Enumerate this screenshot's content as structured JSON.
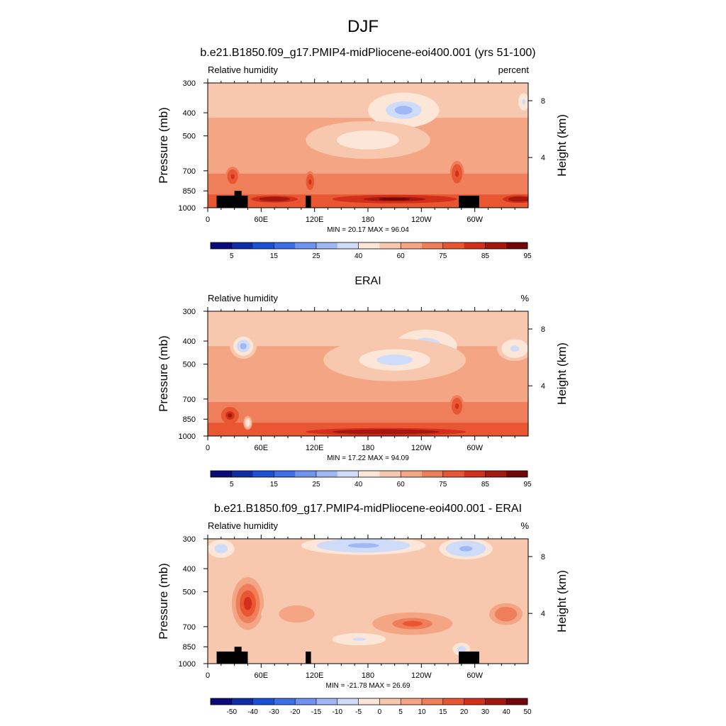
{
  "figure": {
    "title": "DJF"
  },
  "colorbar_palette": [
    "#0a0a78",
    "#0d2ca6",
    "#1a4fd6",
    "#3d6ee8",
    "#6f93ef",
    "#9fb8f4",
    "#cfdcf9",
    "#fbe6d8",
    "#f8c8ae",
    "#f4a584",
    "#ef7e5b",
    "#e85632",
    "#d2301a",
    "#a5180e",
    "#730608"
  ],
  "chart_data": [
    {
      "type": "heatmap",
      "title": "b.e21.B1850.f09_g17.PMIP4-midPliocene-eoi400.001 (yrs 51-100)",
      "variable_label": "Relative humidity",
      "units_label": "percent",
      "ylabel": "Pressure (mb)",
      "ylabel_right": "Height (km)",
      "x_ticks": [
        "0",
        "60E",
        "120E",
        "180",
        "120W",
        "60W"
      ],
      "x_tick_values": [
        0,
        60,
        120,
        180,
        240,
        300
      ],
      "xlim": [
        0,
        360
      ],
      "y_ticks": [
        "300",
        "400",
        "500",
        "700",
        "850",
        "1000"
      ],
      "y_tick_values": [
        300,
        400,
        500,
        700,
        850,
        1000
      ],
      "ylim": [
        1000,
        300
      ],
      "height_ticks": [
        "8",
        "4"
      ],
      "height_tick_pressures": [
        356,
        616
      ],
      "stats_text": "MIN =  20.17  MAX =  96.04",
      "min": 20.17,
      "max": 96.04,
      "colorbar_labels": [
        "5",
        "15",
        "25",
        "40",
        "60",
        "75",
        "85",
        "95"
      ],
      "colorbar_label_levels": [
        1,
        3,
        5,
        7,
        9,
        11,
        13,
        15
      ],
      "shading_levels": [
        0,
        5,
        10,
        15,
        20,
        25,
        30,
        40,
        50,
        60,
        70,
        75,
        80,
        85,
        90,
        95,
        100
      ],
      "has_topography": true,
      "features": [
        {
          "lon": 220,
          "p": 390,
          "value": 25,
          "rx": 40,
          "ry": 110
        },
        {
          "lon": 180,
          "p": 520,
          "value": 44,
          "rx": 70,
          "ry": 160
        },
        {
          "lon": 210,
          "p": 920,
          "value": 92,
          "rx": 70,
          "ry": 25
        },
        {
          "lon": 280,
          "p": 720,
          "value": 82,
          "rx": 8,
          "ry": 140
        },
        {
          "lon": 115,
          "p": 780,
          "value": 82,
          "rx": 6,
          "ry": 120
        },
        {
          "lon": 28,
          "p": 740,
          "value": 82,
          "rx": 8,
          "ry": 100
        },
        {
          "lon": 350,
          "p": 920,
          "value": 88,
          "rx": 25,
          "ry": 40
        },
        {
          "lon": 75,
          "p": 920,
          "value": 88,
          "rx": 35,
          "ry": 30
        },
        {
          "lon": 355,
          "p": 360,
          "value": 35,
          "rx": 8,
          "ry": 60
        }
      ]
    },
    {
      "type": "heatmap",
      "title": "ERAI",
      "variable_label": "Relative humidity",
      "units_label": "%",
      "ylabel": "Pressure (mb)",
      "ylabel_right": "Height (km)",
      "x_ticks": [
        "0",
        "60E",
        "120E",
        "180",
        "120W",
        "60W"
      ],
      "x_tick_values": [
        0,
        60,
        120,
        180,
        240,
        300
      ],
      "xlim": [
        0,
        360
      ],
      "y_ticks": [
        "300",
        "400",
        "500",
        "700",
        "850",
        "1000"
      ],
      "y_tick_values": [
        300,
        400,
        500,
        700,
        850,
        1000
      ],
      "ylim": [
        1000,
        300
      ],
      "height_ticks": [
        "8",
        "4"
      ],
      "height_tick_pressures": [
        356,
        616
      ],
      "stats_text": "MIN =  17.22  MAX =  94.09",
      "min": 17.22,
      "max": 94.09,
      "colorbar_labels": [
        "5",
        "15",
        "25",
        "40",
        "60",
        "75",
        "85",
        "95"
      ],
      "colorbar_label_levels": [
        1,
        3,
        5,
        7,
        9,
        11,
        13,
        15
      ],
      "shading_levels": [
        0,
        5,
        10,
        15,
        20,
        25,
        30,
        40,
        50,
        60,
        70,
        75,
        80,
        85,
        90,
        95,
        100
      ],
      "has_topography": false,
      "features": [
        {
          "lon": 245,
          "p": 420,
          "value": 22,
          "rx": 35,
          "ry": 110
        },
        {
          "lon": 210,
          "p": 480,
          "value": 38,
          "rx": 80,
          "ry": 170
        },
        {
          "lon": 40,
          "p": 420,
          "value": 28,
          "rx": 15,
          "ry": 80
        },
        {
          "lon": 200,
          "p": 960,
          "value": 88,
          "rx": 120,
          "ry": 40
        },
        {
          "lon": 280,
          "p": 750,
          "value": 82,
          "rx": 8,
          "ry": 120
        },
        {
          "lon": 25,
          "p": 820,
          "value": 85,
          "rx": 10,
          "ry": 90
        },
        {
          "lon": 345,
          "p": 430,
          "value": 35,
          "rx": 20,
          "ry": 80
        },
        {
          "lon": 45,
          "p": 880,
          "value": 40,
          "rx": 5,
          "ry": 70
        }
      ]
    },
    {
      "type": "heatmap",
      "title": "b.e21.B1850.f09_g17.PMIP4-midPliocene-eoi400.001 - ERAI",
      "variable_label": "Relative humidity",
      "units_label": "%",
      "ylabel": "Pressure (mb)",
      "ylabel_right": "Height (km)",
      "x_ticks": [
        "0",
        "60E",
        "120E",
        "180",
        "120W",
        "60W"
      ],
      "x_tick_values": [
        0,
        60,
        120,
        180,
        240,
        300
      ],
      "xlim": [
        0,
        360
      ],
      "y_ticks": [
        "300",
        "400",
        "500",
        "700",
        "850",
        "1000"
      ],
      "y_tick_values": [
        300,
        400,
        500,
        700,
        850,
        1000
      ],
      "ylim": [
        1000,
        300
      ],
      "height_ticks": [
        "8",
        "4"
      ],
      "height_tick_pressures": [
        356,
        616
      ],
      "stats_text": "MIN = -21.78  MAX =  26.69",
      "min": -21.78,
      "max": 26.69,
      "colorbar_labels": [
        "-50",
        "-40",
        "-30",
        "-20",
        "-15",
        "-10",
        "-5",
        "0",
        "5",
        "10",
        "15",
        "20",
        "30",
        "40",
        "50"
      ],
      "colorbar_label_levels": [
        1,
        2,
        3,
        4,
        5,
        6,
        7,
        8,
        9,
        10,
        11,
        12,
        13,
        14,
        15
      ],
      "shading_levels": [
        -60,
        -50,
        -40,
        -30,
        -20,
        -15,
        -10,
        -5,
        0,
        5,
        10,
        15,
        20,
        30,
        40,
        50,
        60
      ],
      "has_topography": true,
      "features": [
        {
          "lon": 45,
          "p": 560,
          "value": 22,
          "rx": 18,
          "ry": 250
        },
        {
          "lon": 230,
          "p": 680,
          "value": 17,
          "rx": 45,
          "ry": 110
        },
        {
          "lon": 335,
          "p": 620,
          "value": 13,
          "rx": 25,
          "ry": 140
        },
        {
          "lon": 175,
          "p": 320,
          "value": -12,
          "rx": 70,
          "ry": 40
        },
        {
          "lon": 290,
          "p": 330,
          "value": -12,
          "rx": 30,
          "ry": 50
        },
        {
          "lon": 170,
          "p": 790,
          "value": -7,
          "rx": 30,
          "ry": 50
        },
        {
          "lon": 15,
          "p": 330,
          "value": -9,
          "rx": 15,
          "ry": 40
        },
        {
          "lon": 100,
          "p": 620,
          "value": 7,
          "rx": 40,
          "ry": 170
        },
        {
          "lon": 285,
          "p": 870,
          "value": -8,
          "rx": 10,
          "ry": 60
        }
      ]
    }
  ]
}
